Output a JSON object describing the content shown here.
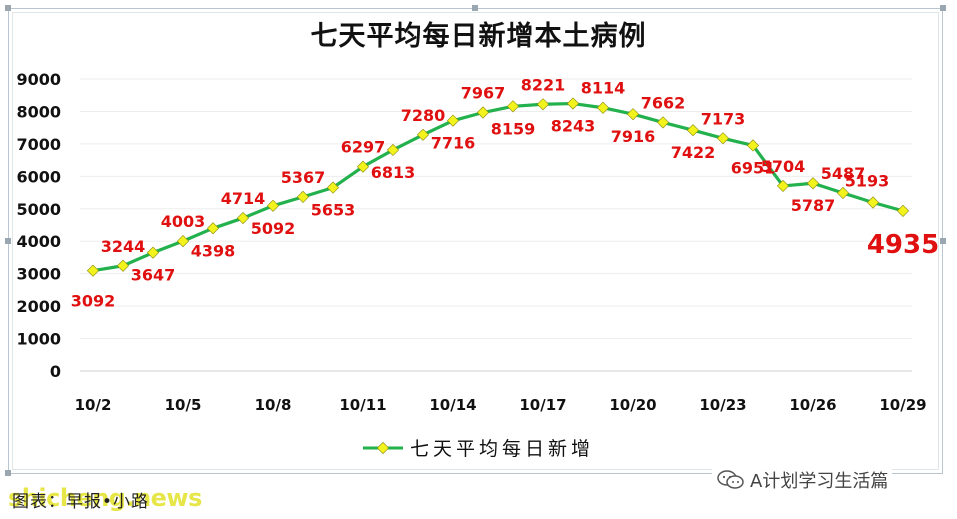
{
  "chart_data": {
    "type": "line",
    "title": "七天平均每日新增本土病例",
    "xlabel": "",
    "ylabel": "",
    "ylim": [
      0,
      9000
    ],
    "yticks": [
      "0",
      "1000",
      "2000",
      "3000",
      "4000",
      "5000",
      "6000",
      "7000",
      "8000",
      "9000"
    ],
    "x": [
      "10/2",
      "10/3",
      "10/4",
      "10/5",
      "10/6",
      "10/7",
      "10/8",
      "10/9",
      "10/10",
      "10/11",
      "10/12",
      "10/13",
      "10/14",
      "10/15",
      "10/16",
      "10/17",
      "10/18",
      "10/19",
      "10/20",
      "10/21",
      "10/22",
      "10/23",
      "10/24",
      "10/25",
      "10/26",
      "10/27",
      "10/28",
      "10/29"
    ],
    "xtick_labels": [
      "10/2",
      "10/5",
      "10/8",
      "10/11",
      "10/14",
      "10/17",
      "10/20",
      "10/23",
      "10/26",
      "10/29"
    ],
    "series": [
      {
        "name": "七天平均每日新增",
        "color": "#22b14c",
        "marker_color": "#f2f21c",
        "values": [
          3092,
          3244,
          3647,
          4003,
          4398,
          4714,
          5092,
          5367,
          5653,
          6297,
          6813,
          7280,
          7716,
          7967,
          8159,
          8221,
          8243,
          8114,
          7916,
          7662,
          7422,
          7173,
          6951,
          5704,
          5787,
          5487,
          5193,
          4935
        ]
      }
    ],
    "data_labels": [
      "3092",
      "3244",
      "3647",
      "4003",
      "4398",
      "4714",
      "5092",
      "5367",
      "5653",
      "6297",
      "6813",
      "7280",
      "7716",
      "7967",
      "8159",
      "8221",
      "8243",
      "8114",
      "7916",
      "7662",
      "7422",
      "7173",
      "6951",
      "5704",
      "5787",
      "5487",
      "5193",
      "4935"
    ],
    "label_color": "#e01010",
    "highlight_label": "4935",
    "legend": "bottom",
    "grid": true
  },
  "source_text": "图表：早报•小路",
  "site_text": "shicheng.news",
  "brand_text": "A计划学习生活篇",
  "brand_icon": "wechat-icon"
}
